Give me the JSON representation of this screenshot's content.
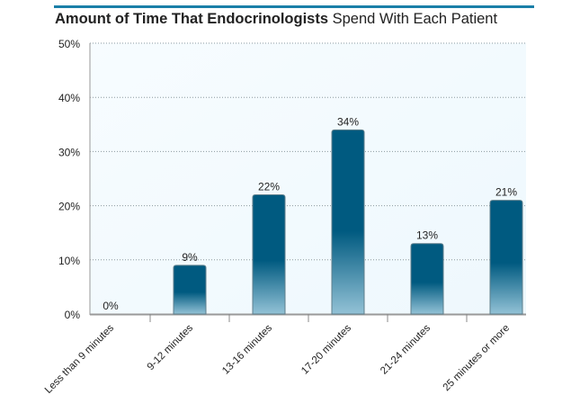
{
  "chart_data": {
    "type": "bar",
    "title_bold": "Amount of Time That Endocrinologists",
    "title_rest": "Spend With Each Patient",
    "xlabel": "",
    "ylabel": "",
    "categories": [
      "Less than 9 minutes",
      "9-12 minutes",
      "13-16 minutes",
      "17-20 minutes",
      "21-24 minutes",
      "25 minutes or more"
    ],
    "values": [
      0,
      9,
      22,
      34,
      13,
      21
    ],
    "data_labels": [
      "0%",
      "9%",
      "22%",
      "34%",
      "13%",
      "21%"
    ],
    "ylim": [
      0,
      50
    ],
    "yticks": [
      0,
      10,
      20,
      30,
      40,
      50
    ],
    "ytick_labels": [
      "0%",
      "10%",
      "20%",
      "30%",
      "40%",
      "50%"
    ],
    "grid": true,
    "legend": "none",
    "colors": {
      "bar_top": "#005a80",
      "bar_bottom": "#93c2d6",
      "accent": "#1a7fa8",
      "plot_bg": "#eef8fd"
    }
  }
}
